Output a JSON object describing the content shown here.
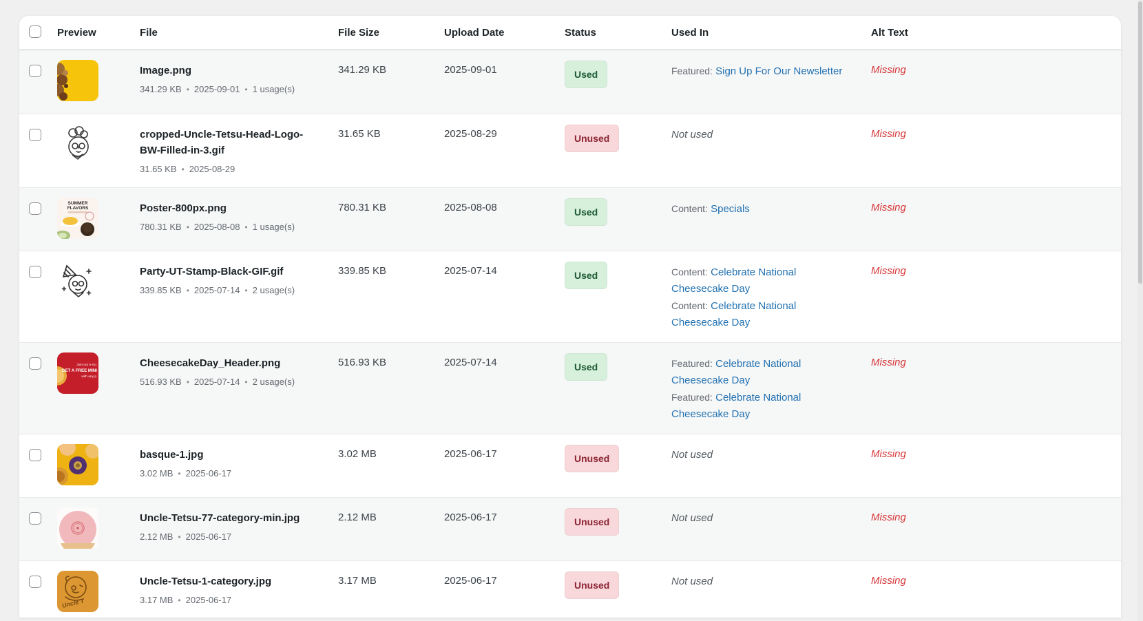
{
  "table": {
    "meta_separator": "•",
    "not_used_label": "Not used",
    "link_color": "#2271b1",
    "missing_color": "#d63638",
    "columns": [
      {
        "key": "select",
        "label": ""
      },
      {
        "key": "preview",
        "label": "Preview"
      },
      {
        "key": "file",
        "label": "File"
      },
      {
        "key": "file_size",
        "label": "File Size"
      },
      {
        "key": "upload_date",
        "label": "Upload Date"
      },
      {
        "key": "status",
        "label": "Status"
      },
      {
        "key": "used_in",
        "label": "Used In"
      },
      {
        "key": "alt_text",
        "label": "Alt Text"
      }
    ],
    "status_styles": {
      "Used": {
        "bg": "#d7f0dc",
        "fg": "#1d5a32"
      },
      "Unused": {
        "bg": "#f8d8db",
        "fg": "#8c2332"
      }
    },
    "rows": [
      {
        "file_name": "Image.png",
        "meta": [
          "341.29 KB",
          "2025-09-01",
          "1 usage(s)"
        ],
        "file_size": "341.29 KB",
        "upload_date": "2025-09-01",
        "status": "Used",
        "used_in": [
          {
            "prefix": "Featured:",
            "title": "Sign Up For Our Newsletter"
          }
        ],
        "alt_text": "Missing",
        "thumbnail": "cookies-on-yellow"
      },
      {
        "file_name": "cropped-Uncle-Tetsu-Head-Logo-BW-Filled-in-3.gif",
        "meta": [
          "31.65 KB",
          "2025-08-29"
        ],
        "file_size": "31.65 KB",
        "upload_date": "2025-08-29",
        "status": "Unused",
        "used_in": [],
        "alt_text": "Missing",
        "thumbnail": "chef-head-lineart"
      },
      {
        "file_name": "Poster-800px.png",
        "meta": [
          "780.31 KB",
          "2025-08-08",
          "1 usage(s)"
        ],
        "file_size": "780.31 KB",
        "upload_date": "2025-08-08",
        "status": "Used",
        "used_in": [
          {
            "prefix": "Content:",
            "title": "Specials"
          }
        ],
        "alt_text": "Missing",
        "thumbnail": "summer-flavors-poster"
      },
      {
        "file_name": "Party-UT-Stamp-Black-GIF.gif",
        "meta": [
          "339.85 KB",
          "2025-07-14",
          "2 usage(s)"
        ],
        "file_size": "339.85 KB",
        "upload_date": "2025-07-14",
        "status": "Used",
        "used_in": [
          {
            "prefix": "Content:",
            "title": "Celebrate National Cheesecake Day"
          },
          {
            "prefix": "Content:",
            "title": "Celebrate National Cheesecake Day"
          }
        ],
        "alt_text": "Missing",
        "thumbnail": "party-hat-lineart"
      },
      {
        "file_name": "CheesecakeDay_Header.png",
        "meta": [
          "516.93 KB",
          "2025-07-14",
          "2 usage(s)"
        ],
        "file_size": "516.93 KB",
        "upload_date": "2025-07-14",
        "status": "Used",
        "used_in": [
          {
            "prefix": "Featured:",
            "title": "Celebrate National Cheesecake Day"
          },
          {
            "prefix": "Featured:",
            "title": "Celebrate National Cheesecake Day"
          }
        ],
        "alt_text": "Missing",
        "thumbnail": "red-free-mini-banner"
      },
      {
        "file_name": "basque-1.jpg",
        "meta": [
          "3.02 MB",
          "2025-06-17"
        ],
        "file_size": "3.02 MB",
        "upload_date": "2025-06-17",
        "status": "Unused",
        "used_in": [],
        "alt_text": "Missing",
        "thumbnail": "basque-cakes-yellow"
      },
      {
        "file_name": "Uncle-Tetsu-77-category-min.jpg",
        "meta": [
          "2.12 MB",
          "2025-06-17"
        ],
        "file_size": "2.12 MB",
        "upload_date": "2025-06-17",
        "status": "Unused",
        "used_in": [],
        "alt_text": "Missing",
        "thumbnail": "pink-stamped-cheesecake"
      },
      {
        "file_name": "Uncle-Tetsu-1-category.jpg",
        "meta": [
          "3.17 MB",
          "2025-06-17"
        ],
        "file_size": "3.17 MB",
        "upload_date": "2025-06-17",
        "status": "Unused",
        "used_in": [],
        "alt_text": "Missing",
        "thumbnail": "branded-cheesecake-top"
      }
    ]
  }
}
